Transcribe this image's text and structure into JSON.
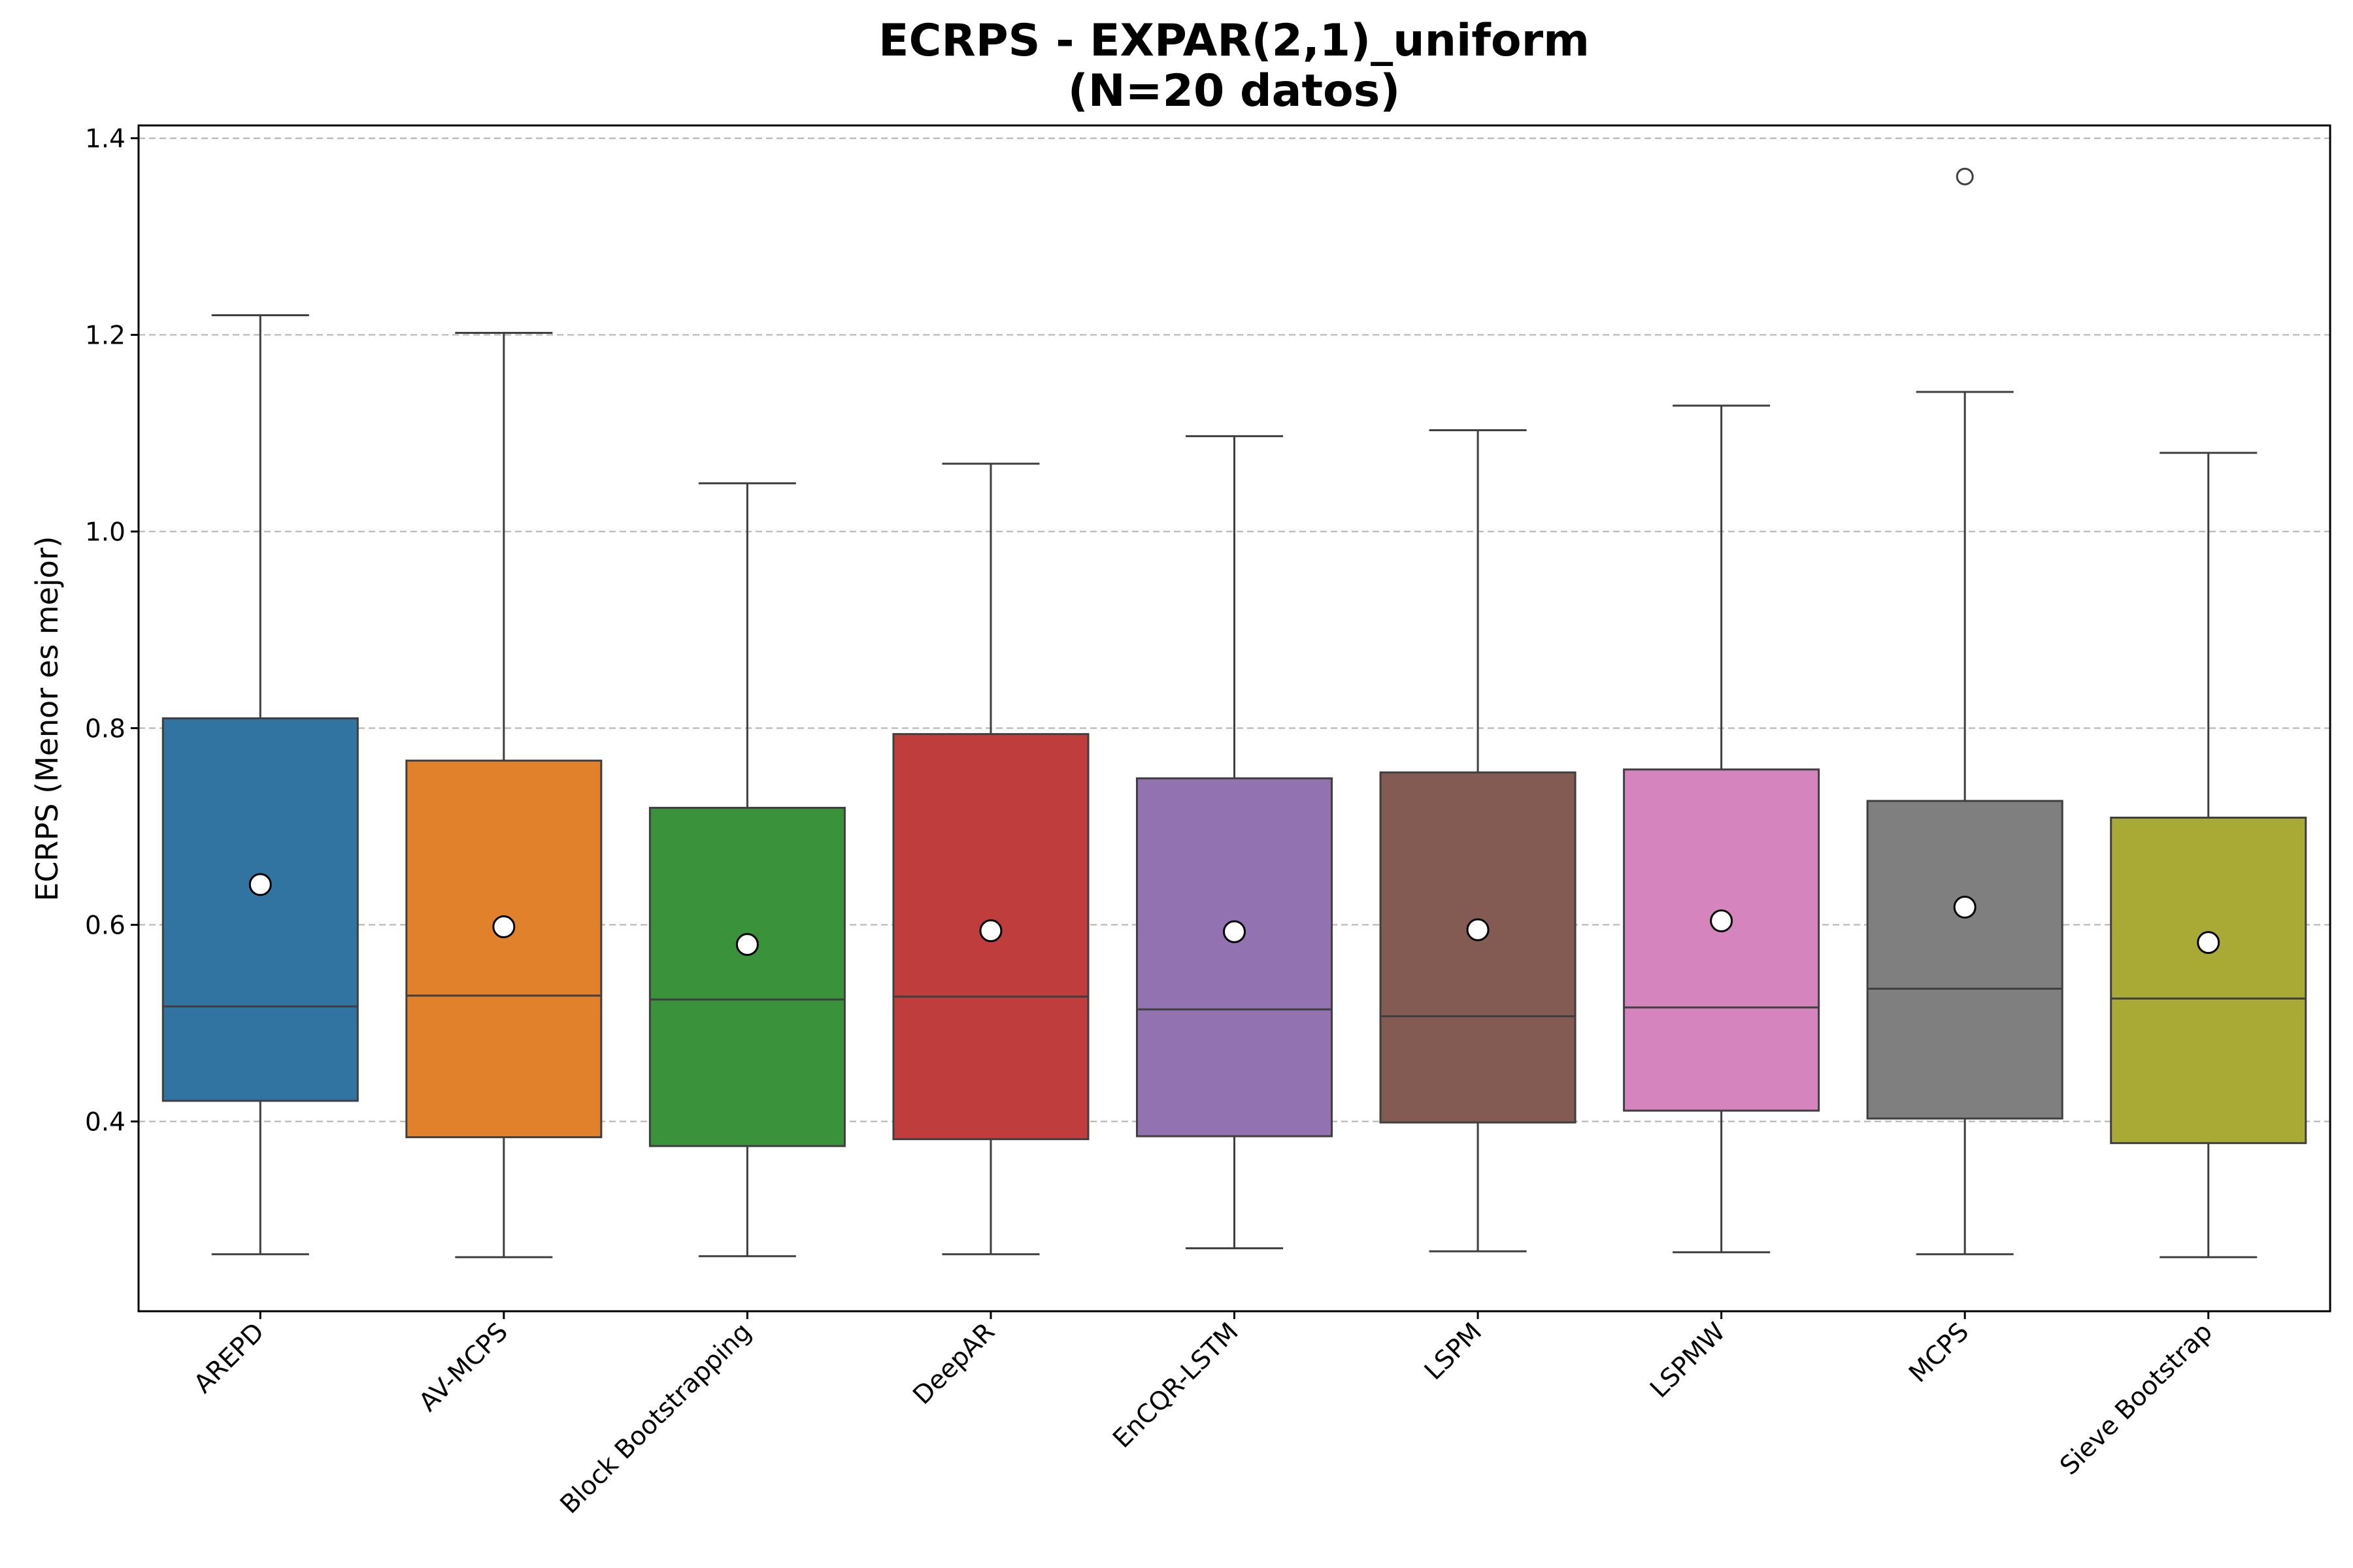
{
  "chart_data": {
    "type": "boxplot",
    "title": "ECRPS - EXPAR(2,1)_uniform",
    "subtitle": "(N=20 datos)",
    "xlabel": "",
    "ylabel": "ECRPS (Menor es mejor)",
    "ylim": [
      0.207,
      1.413
    ],
    "yticks": [
      0.4,
      0.6,
      0.8,
      1.0,
      1.2,
      1.4
    ],
    "ytick_labels": [
      "0.4",
      "0.6",
      "0.8",
      "1.0",
      "1.2",
      "1.4"
    ],
    "grid": "y-dashed",
    "categories": [
      "AREPD",
      "AV-MCPS",
      "Block Bootstrapping",
      "DeepAR",
      "EnCQR-LSTM",
      "LSPM",
      "LSPMW",
      "MCPS",
      "Sieve Bootstrap"
    ],
    "series": [
      {
        "category": "AREPD",
        "color": "#3274a1",
        "whisker_low": 0.265,
        "q1": 0.421,
        "median": 0.517,
        "q3": 0.81,
        "whisker_high": 1.22,
        "mean": 0.641,
        "outliers": []
      },
      {
        "category": "AV-MCPS",
        "color": "#e1812c",
        "whisker_low": 0.262,
        "q1": 0.384,
        "median": 0.528,
        "q3": 0.767,
        "whisker_high": 1.202,
        "mean": 0.598,
        "outliers": []
      },
      {
        "category": "Block Bootstrapping",
        "color": "#3a923a",
        "whisker_low": 0.263,
        "q1": 0.375,
        "median": 0.524,
        "q3": 0.719,
        "whisker_high": 1.049,
        "mean": 0.58,
        "outliers": []
      },
      {
        "category": "DeepAR",
        "color": "#c03d3e",
        "whisker_low": 0.265,
        "q1": 0.382,
        "median": 0.527,
        "q3": 0.794,
        "whisker_high": 1.069,
        "mean": 0.594,
        "outliers": []
      },
      {
        "category": "EnCQR-LSTM",
        "color": "#9372b2",
        "whisker_low": 0.271,
        "q1": 0.385,
        "median": 0.514,
        "q3": 0.749,
        "whisker_high": 1.097,
        "mean": 0.593,
        "outliers": []
      },
      {
        "category": "LSPM",
        "color": "#845b53",
        "whisker_low": 0.268,
        "q1": 0.399,
        "median": 0.507,
        "q3": 0.755,
        "whisker_high": 1.103,
        "mean": 0.595,
        "outliers": []
      },
      {
        "category": "LSPMW",
        "color": "#d684bd",
        "whisker_low": 0.267,
        "q1": 0.411,
        "median": 0.516,
        "q3": 0.758,
        "whisker_high": 1.128,
        "mean": 0.604,
        "outliers": []
      },
      {
        "category": "MCPS",
        "color": "#7f7f7f",
        "whisker_low": 0.265,
        "q1": 0.403,
        "median": 0.535,
        "q3": 0.726,
        "whisker_high": 1.142,
        "mean": 0.618,
        "outliers": [
          1.361
        ]
      },
      {
        "category": "Sieve Bootstrap",
        "color": "#a9aa35",
        "whisker_low": 0.262,
        "q1": 0.378,
        "median": 0.525,
        "q3": 0.709,
        "whisker_high": 1.08,
        "mean": 0.582,
        "outliers": []
      }
    ]
  }
}
